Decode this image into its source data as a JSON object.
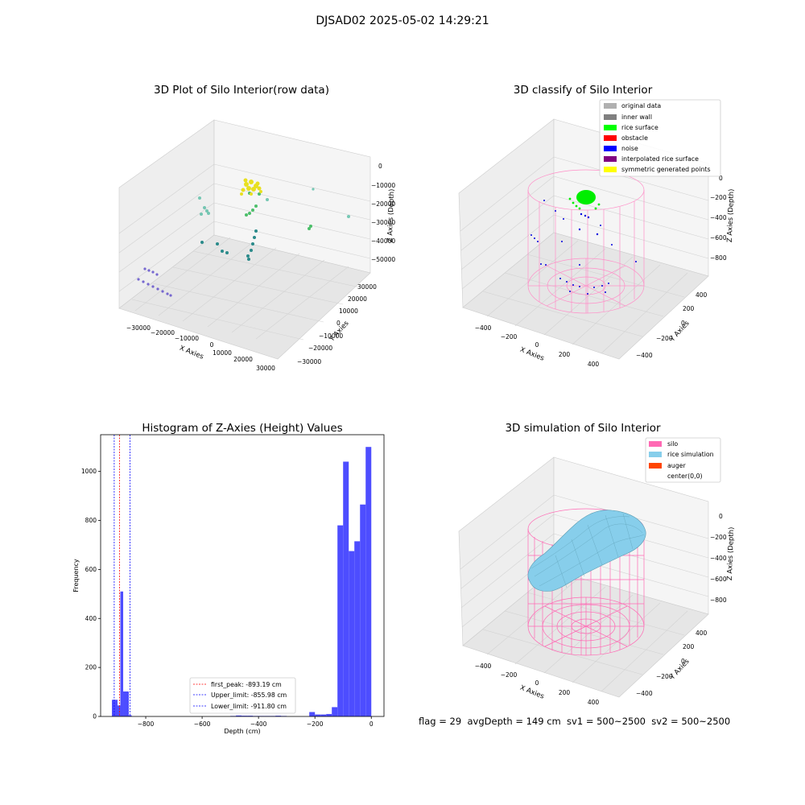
{
  "figure": {
    "suptitle": "DJSAD02 2025-05-02 14:29:21",
    "footer": "flag = 29  avgDepth = 149 cm  sv1 = 500~2500  sv2 = 500~2500"
  },
  "panels": {
    "raw": {
      "title": "3D Plot of Silo Interior(row data)",
      "xlabel": "X Axies",
      "ylabel": "Y Axies",
      "zlabel": "Z Axies (Depth)",
      "xticks": [
        "−30000",
        "−20000",
        "−10000",
        "0",
        "10000",
        "20000",
        "30000"
      ],
      "yticks": [
        "−30000",
        "−20000",
        "−10000",
        "0",
        "10000",
        "20000",
        "30000"
      ],
      "zticks": [
        "0",
        "−10000",
        "−20000",
        "−30000",
        "−40000",
        "−50000"
      ]
    },
    "classify": {
      "title": "3D classify of Silo Interior",
      "xlabel": "X Axies",
      "ylabel": "Y Axies",
      "zlabel": "Z Axies (Depth)",
      "xticks": [
        "−400",
        "−200",
        "0",
        "200",
        "400"
      ],
      "yticks": [
        "−400",
        "−200",
        "0",
        "200",
        "400"
      ],
      "zticks": [
        "0",
        "−200",
        "−400",
        "−600",
        "−800"
      ],
      "legend": [
        {
          "label": "original data",
          "color": "#b0b0b0"
        },
        {
          "label": "inner wall",
          "color": "#808080"
        },
        {
          "label": "rice surface",
          "color": "#00ff00"
        },
        {
          "label": "obstacle",
          "color": "#ff0000"
        },
        {
          "label": "noise",
          "color": "#0000ff"
        },
        {
          "label": "interpolated rice surface",
          "color": "#800080"
        },
        {
          "label": "symmetric generated points",
          "color": "#ffff00"
        }
      ]
    },
    "simulation": {
      "title": "3D simulation of Silo Interior",
      "xlabel": "X Axies",
      "ylabel": "Y Axies",
      "zlabel": "Z Axies (Depth)",
      "xticks": [
        "−400",
        "−200",
        "0",
        "200",
        "400"
      ],
      "yticks": [
        "−400",
        "−200",
        "0",
        "200",
        "400"
      ],
      "zticks": [
        "0",
        "−200",
        "−400",
        "−600",
        "−800"
      ],
      "legend": [
        {
          "label": "silo",
          "color": "#ff69b4"
        },
        {
          "label": "rice simulation",
          "color": "#87ceeb"
        },
        {
          "label": "auger",
          "color": "#ff4500"
        },
        {
          "label": "center(0,0)",
          "color": ""
        }
      ]
    }
  },
  "chart_data": [
    {
      "type": "histogram",
      "title": "Histogram of Z-Axies (Height) Values",
      "xlabel": "Depth (cm)",
      "ylabel": "Frequency",
      "xlim": [
        -960,
        45
      ],
      "ylim": [
        0,
        1150
      ],
      "xticks": [
        "−800",
        "−600",
        "−400",
        "−200",
        "0"
      ],
      "yticks": [
        "0",
        "200",
        "400",
        "600",
        "800",
        "1000"
      ],
      "bar_color": "#4d4dff",
      "bins": [
        {
          "x0": -920,
          "x1": -900,
          "count": 68
        },
        {
          "x0": -900,
          "x1": -890,
          "count": 45
        },
        {
          "x0": -890,
          "x1": -880,
          "count": 510
        },
        {
          "x0": -880,
          "x1": -860,
          "count": 102
        },
        {
          "x0": -860,
          "x1": -850,
          "count": 5
        },
        {
          "x0": -500,
          "x1": -480,
          "count": 2
        },
        {
          "x0": -480,
          "x1": -460,
          "count": 4
        },
        {
          "x0": -460,
          "x1": -440,
          "count": 3
        },
        {
          "x0": -440,
          "x1": -420,
          "count": 3
        },
        {
          "x0": -420,
          "x1": -400,
          "count": 2
        },
        {
          "x0": -400,
          "x1": -380,
          "count": 2
        },
        {
          "x0": -380,
          "x1": -360,
          "count": 2
        },
        {
          "x0": -360,
          "x1": -340,
          "count": 2
        },
        {
          "x0": -340,
          "x1": -320,
          "count": 3
        },
        {
          "x0": -320,
          "x1": -300,
          "count": 2
        },
        {
          "x0": -220,
          "x1": -200,
          "count": 18
        },
        {
          "x0": -200,
          "x1": -180,
          "count": 8
        },
        {
          "x0": -180,
          "x1": -160,
          "count": 8
        },
        {
          "x0": -160,
          "x1": -140,
          "count": 10
        },
        {
          "x0": -140,
          "x1": -120,
          "count": 38
        },
        {
          "x0": -120,
          "x1": -100,
          "count": 780
        },
        {
          "x0": -100,
          "x1": -80,
          "count": 1040
        },
        {
          "x0": -80,
          "x1": -60,
          "count": 675
        },
        {
          "x0": -60,
          "x1": -40,
          "count": 715
        },
        {
          "x0": -40,
          "x1": -20,
          "count": 865
        },
        {
          "x0": -20,
          "x1": 0,
          "count": 1100
        }
      ],
      "vlines": [
        {
          "label": "first_peak: -893.19 cm",
          "x": -893.19,
          "color": "#ff0000"
        },
        {
          "label": "Upper_limit: -855.98 cm",
          "x": -855.98,
          "color": "#0000ff"
        },
        {
          "label": "Lower_limit: -911.80 cm",
          "x": -911.8,
          "color": "#0000ff"
        }
      ],
      "legend_position": "lower-center"
    }
  ]
}
